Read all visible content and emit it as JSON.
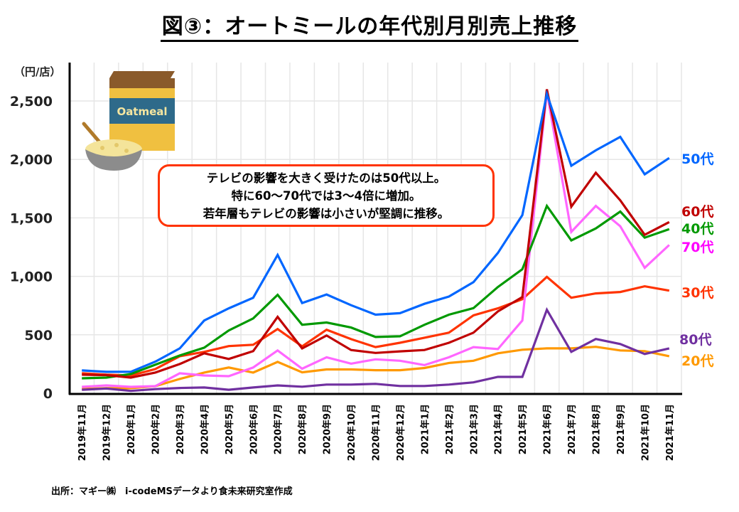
{
  "title": "図③：オートミールの年代別月別売上推移",
  "annotation": {
    "lines": [
      "テレビの影響を大きく受けたのは50代以上。",
      "特に60～70代では3～4倍に増加。",
      "若年層もテレビの影響は小さいが堅調に推移。"
    ],
    "border_color": "#ff3300"
  },
  "illustration": {
    "icon": "oatmeal-box-and-bowl-icon",
    "box_label": "Oatmeal"
  },
  "source": "出所：マギー㈱　i-codeMSデータより食未来研究室作成",
  "chart_data": {
    "type": "line",
    "title": "図③：オートミールの年代別月別売上推移",
    "xlabel": "",
    "ylabel": "（円/店）",
    "ylim": [
      0,
      2800
    ],
    "yticks": [
      0,
      500,
      1000,
      1500,
      2000,
      2500
    ],
    "ytick_labels": [
      "0",
      "500",
      "1,000",
      "1,500",
      "2,000",
      "2,500"
    ],
    "grid": true,
    "legend": "right (labels at line ends)",
    "categories": [
      "2019年11月",
      "2019年12月",
      "2020年1月",
      "2020年2月",
      "2020年3月",
      "2020年4月",
      "2020年5月",
      "2020年6月",
      "2020年7月",
      "2020年8月",
      "2020年9月",
      "2020年10月",
      "2020年11月",
      "2020年12月",
      "2021年1月",
      "2021年2月",
      "2021年3月",
      "2021年4月",
      "2021年5月",
      "2021年6月",
      "2021年7月",
      "2021年8月",
      "2021年9月",
      "2021年10月",
      "2021年11月"
    ],
    "series": [
      {
        "name": "20代",
        "line_color": "#ff9900",
        "label_color": "#ff9900",
        "values": [
          37,
          43,
          43,
          61,
          122,
          177,
          220,
          177,
          268,
          179,
          204,
          204,
          197,
          197,
          216,
          259,
          278,
          342,
          372,
          384,
          384,
          397,
          366,
          360,
          317
        ]
      },
      {
        "name": "80代",
        "line_color": "#7030a0",
        "label_color": "#7030a0",
        "values": [
          30,
          40,
          20,
          35,
          45,
          49,
          30,
          49,
          67,
          56,
          74,
          74,
          80,
          62,
          62,
          74,
          93,
          140,
          140,
          714,
          354,
          464,
          421,
          336,
          384
        ]
      },
      {
        "name": "30代",
        "line_color": "#ff3300",
        "label_color": "#ff3300",
        "values": [
          171,
          159,
          152,
          207,
          317,
          354,
          403,
          415,
          549,
          401,
          543,
          463,
          395,
          432,
          475,
          518,
          666,
          726,
          805,
          995,
          817,
          854,
          866,
          915,
          878
        ]
      },
      {
        "name": "70代",
        "line_color": "#ff66ff",
        "label_color": "#ff00ff",
        "values": [
          55,
          67,
          55,
          61,
          171,
          152,
          146,
          220,
          366,
          210,
          308,
          253,
          290,
          278,
          241,
          308,
          395,
          378,
          622,
          2580,
          1380,
          1602,
          1428,
          1073,
          1268
        ]
      },
      {
        "name": "40代",
        "line_color": "#009900",
        "label_color": "#009900",
        "values": [
          128,
          134,
          165,
          244,
          323,
          390,
          537,
          640,
          842,
          586,
          605,
          562,
          481,
          487,
          586,
          672,
          728,
          909,
          1061,
          1602,
          1307,
          1410,
          1554,
          1331,
          1404
        ]
      },
      {
        "name": "60代",
        "line_color": "#c00000",
        "label_color": "#c00000",
        "values": [
          159,
          155,
          134,
          177,
          250,
          342,
          293,
          360,
          653,
          383,
          494,
          370,
          345,
          358,
          370,
          432,
          518,
          700,
          823,
          2600,
          1596,
          1886,
          1650,
          1355,
          1464
        ]
      },
      {
        "name": "50代",
        "line_color": "#0066ff",
        "label_color": "#0066ff",
        "values": [
          195,
          183,
          184,
          270,
          384,
          622,
          726,
          817,
          1183,
          772,
          845,
          753,
          672,
          685,
          765,
          827,
          950,
          1200,
          1524,
          2560,
          1946,
          2078,
          2193,
          1873,
          2012
        ]
      }
    ]
  }
}
